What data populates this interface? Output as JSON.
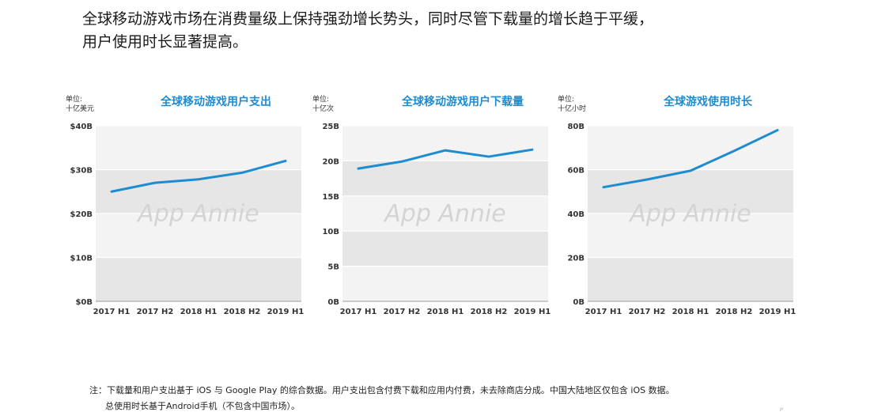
{
  "headline": {
    "line1": "全球移动游戏市场在消费量级上保持强劲增长势头，同时尽管下载量的增长趋于平缓，",
    "line2": "用户使用时长显著提高。"
  },
  "watermark": "App Annie",
  "chart_data": [
    {
      "type": "line",
      "title": "全球移动游戏用户支出",
      "unit_line1": "单位:",
      "unit_line2": "十亿美元",
      "categories": [
        "2017 H1",
        "2017 H2",
        "2018 H1",
        "2018 H2",
        "2019 H1"
      ],
      "y_ticks": [
        "$0B",
        "$10B",
        "$20B",
        "$30B",
        "$40B"
      ],
      "ylim": [
        0,
        40
      ],
      "series": [
        {
          "values": [
            25,
            27,
            27.8,
            29.3,
            32
          ]
        }
      ],
      "color": "#1e8ccf"
    },
    {
      "type": "line",
      "title": "全球移动游戏用户下载量",
      "unit_line1": "单位:",
      "unit_line2": "十亿次",
      "categories": [
        "2017 H1",
        "2017 H2",
        "2018 H1",
        "2018 H2",
        "2019 H1"
      ],
      "y_ticks": [
        "0B",
        "5B",
        "10B",
        "15B",
        "20B",
        "25B"
      ],
      "ylim": [
        0,
        25
      ],
      "series": [
        {
          "values": [
            18.9,
            19.9,
            21.5,
            20.6,
            21.6
          ]
        }
      ],
      "color": "#1e8ccf"
    },
    {
      "type": "line",
      "title": "全球游戏使用时长",
      "unit_line1": "单位:",
      "unit_line2": "十亿小时",
      "categories": [
        "2017 H1",
        "2017 H2",
        "2018 H1",
        "2018 H2",
        "2019 H1"
      ],
      "y_ticks": [
        "0B",
        "20B",
        "40B",
        "60B",
        "80B"
      ],
      "ylim": [
        0,
        80
      ],
      "series": [
        {
          "values": [
            52,
            55.5,
            59.5,
            68.5,
            78
          ]
        }
      ],
      "color": "#1e8ccf"
    }
  ],
  "note": {
    "line1": "注：下载量和用户支出基于 iOS 与 Google Play 的综合数据。用户支出包含付费下载和应用内付费，未去除商店分成。中国大陆地区仅包含 iOS 数据。",
    "line2": "总使用时长基于Android手机（不包含中国市场）。"
  },
  "page_mark": "I²"
}
